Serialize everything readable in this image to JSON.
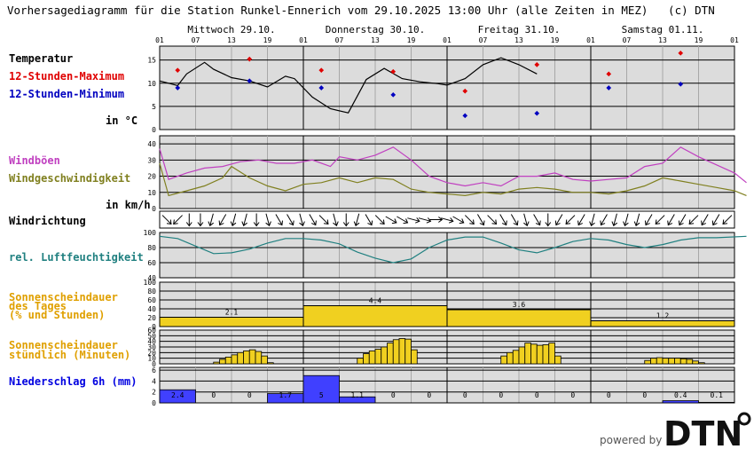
{
  "title": "Vorhersagediagramm für die Station Runkel-Ennerich vom 29.10.2025 13:00 Uhr (alle Zeiten in MEZ)   (c) DTN",
  "powered_by": "powered by",
  "logo_text": "DTN",
  "colors": {
    "temp_max": "#e00000",
    "temp_min": "#0000c0",
    "gust": "#c040c0",
    "wind": "#808020",
    "humidity": "#208080",
    "sunshine": "#f0d020",
    "sunshine_label": "#e0a000",
    "precip": "#4040ff",
    "precip_label": "#0000e0",
    "panel_bg": "#dcdcdc"
  },
  "labels": {
    "temperature": "Temperatur",
    "temp_max": "12-Stunden-Maximum",
    "temp_min": "12-Stunden-Minimum",
    "temp_unit": "in °C",
    "gusts": "Windböen",
    "wind_speed": "Windgeschwindigkeit",
    "wind_unit": "in km/h",
    "wind_direction": "Windrichtung",
    "humidity": "rel. Luftfeuchtigkeit",
    "sun_daily_1": "Sonnenscheindauer",
    "sun_daily_2": "des Tages",
    "sun_daily_3": "(% und Stunden)",
    "sun_hourly_1": "Sonnenscheindauer",
    "sun_hourly_2": "stündlich (Minuten)",
    "precip": "Niederschlag 6h (mm)"
  },
  "chart_data": {
    "type": "meteogram",
    "days": [
      "Mittwoch 29.10.",
      "Donnerstag 30.10.",
      "Freitag 31.10.",
      "Samstag 01.11."
    ],
    "hour_ticks": [
      "01",
      "07",
      "13",
      "19",
      "01",
      "07",
      "13",
      "19",
      "01",
      "07",
      "13",
      "19",
      "01",
      "07",
      "13",
      "19",
      "01"
    ],
    "temperature": {
      "yticks": [
        0,
        5,
        10,
        15
      ],
      "ylim": [
        0,
        18
      ],
      "curve": [
        [
          0,
          10.5
        ],
        [
          6,
          9.5
        ],
        [
          9,
          12
        ],
        [
          15,
          14.5
        ],
        [
          18,
          13
        ],
        [
          24,
          11.2
        ],
        [
          30,
          10.5
        ],
        [
          36,
          9.2
        ],
        [
          42,
          11.5
        ],
        [
          45,
          11
        ],
        [
          51,
          7
        ],
        [
          57,
          4.5
        ],
        [
          63,
          3.6
        ],
        [
          69,
          10.8
        ],
        [
          75,
          13.2
        ],
        [
          81,
          11
        ],
        [
          87,
          10.3
        ],
        [
          93,
          9.9
        ],
        [
          96,
          9.6
        ],
        [
          102,
          11
        ],
        [
          108,
          14
        ],
        [
          114,
          15.5
        ],
        [
          120,
          14
        ],
        [
          126,
          12
        ]
      ],
      "max_points": [
        [
          6,
          12.8
        ],
        [
          30,
          15.2
        ],
        [
          54,
          12.8
        ],
        [
          78,
          12.5
        ],
        [
          102,
          8.3
        ],
        [
          126,
          14
        ],
        [
          150,
          12
        ],
        [
          174,
          16.5
        ]
      ],
      "min_points": [
        [
          6,
          9
        ],
        [
          30,
          10.5
        ],
        [
          54,
          9
        ],
        [
          78,
          7.5
        ],
        [
          102,
          3
        ],
        [
          126,
          3.5
        ],
        [
          150,
          9
        ],
        [
          174,
          9.8
        ]
      ]
    },
    "wind": {
      "yticks": [
        0,
        10,
        20,
        30,
        40
      ],
      "ylim": [
        0,
        45
      ],
      "gusts": [
        [
          0,
          37
        ],
        [
          3,
          18
        ],
        [
          9,
          22
        ],
        [
          15,
          25
        ],
        [
          21,
          26
        ],
        [
          27,
          29
        ],
        [
          33,
          30
        ],
        [
          39,
          28
        ],
        [
          45,
          28
        ],
        [
          51,
          30
        ],
        [
          57,
          26
        ],
        [
          60,
          32
        ],
        [
          66,
          30
        ],
        [
          72,
          33
        ],
        [
          78,
          38
        ],
        [
          84,
          30
        ],
        [
          90,
          20
        ],
        [
          96,
          16
        ],
        [
          102,
          14
        ],
        [
          108,
          16
        ],
        [
          114,
          14
        ],
        [
          120,
          20
        ],
        [
          126,
          20
        ],
        [
          132,
          22
        ],
        [
          138,
          18
        ],
        [
          144,
          17
        ],
        [
          150,
          18
        ],
        [
          156,
          19
        ],
        [
          162,
          26
        ],
        [
          168,
          28
        ],
        [
          174,
          38
        ],
        [
          180,
          32
        ],
        [
          186,
          27
        ],
        [
          192,
          22
        ],
        [
          196,
          16
        ]
      ],
      "speed": [
        [
          0,
          28
        ],
        [
          3,
          8
        ],
        [
          9,
          11
        ],
        [
          15,
          14
        ],
        [
          21,
          19
        ],
        [
          24,
          26
        ],
        [
          30,
          19
        ],
        [
          36,
          14
        ],
        [
          42,
          11
        ],
        [
          48,
          15
        ],
        [
          54,
          16
        ],
        [
          60,
          19
        ],
        [
          66,
          16
        ],
        [
          72,
          19
        ],
        [
          78,
          18
        ],
        [
          84,
          12
        ],
        [
          90,
          10
        ],
        [
          96,
          9
        ],
        [
          102,
          8
        ],
        [
          108,
          10
        ],
        [
          114,
          9
        ],
        [
          120,
          12
        ],
        [
          126,
          13
        ],
        [
          132,
          12
        ],
        [
          138,
          10
        ],
        [
          144,
          10
        ],
        [
          150,
          9
        ],
        [
          156,
          11
        ],
        [
          162,
          14
        ],
        [
          168,
          19
        ],
        [
          174,
          17
        ],
        [
          180,
          15
        ],
        [
          186,
          13
        ],
        [
          192,
          11
        ],
        [
          196,
          8
        ]
      ]
    },
    "wind_direction_deg": [
      315,
      45,
      0,
      0,
      15,
      30,
      15,
      15,
      0,
      345,
      330,
      330,
      345,
      330,
      315,
      345,
      0,
      15,
      330,
      315,
      300,
      300,
      285,
      285,
      270,
      285,
      300,
      315,
      330,
      315,
      330,
      330,
      345,
      330,
      0,
      30,
      45,
      30,
      15,
      30,
      15,
      15,
      15,
      30,
      45,
      30,
      30,
      45,
      30,
      30,
      45
    ],
    "humidity": {
      "yticks": [
        40,
        60,
        80,
        100
      ],
      "ylim": [
        40,
        100
      ],
      "curve": [
        [
          0,
          95
        ],
        [
          6,
          92
        ],
        [
          12,
          82
        ],
        [
          18,
          72
        ],
        [
          24,
          73
        ],
        [
          30,
          78
        ],
        [
          36,
          86
        ],
        [
          42,
          92
        ],
        [
          48,
          92
        ],
        [
          54,
          90
        ],
        [
          60,
          85
        ],
        [
          66,
          74
        ],
        [
          72,
          66
        ],
        [
          78,
          60
        ],
        [
          84,
          65
        ],
        [
          90,
          80
        ],
        [
          96,
          90
        ],
        [
          102,
          94
        ],
        [
          108,
          94
        ],
        [
          114,
          86
        ],
        [
          120,
          77
        ],
        [
          126,
          73
        ],
        [
          132,
          80
        ],
        [
          138,
          88
        ],
        [
          144,
          92
        ],
        [
          150,
          90
        ],
        [
          156,
          84
        ],
        [
          162,
          80
        ],
        [
          168,
          84
        ],
        [
          174,
          90
        ],
        [
          180,
          93
        ],
        [
          186,
          93
        ],
        [
          196,
          95
        ]
      ]
    },
    "sunshine_daily": {
      "yticks": [
        0,
        20,
        40,
        60,
        80,
        100
      ],
      "ylim": [
        0,
        100
      ],
      "days": [
        {
          "hours": "2.1",
          "percent": 21
        },
        {
          "hours": "4.4",
          "percent": 47
        },
        {
          "hours": "3.6",
          "percent": 38
        },
        {
          "hours": "1.2",
          "percent": 13
        }
      ]
    },
    "sunshine_hourly": {
      "yticks": [
        0,
        10,
        20,
        30,
        40,
        50,
        60
      ],
      "ylim": [
        0,
        60
      ],
      "bars": [
        [
          9,
          3
        ],
        [
          10,
          8
        ],
        [
          11,
          12
        ],
        [
          12,
          16
        ],
        [
          13,
          20
        ],
        [
          14,
          23
        ],
        [
          15,
          25
        ],
        [
          16,
          22
        ],
        [
          17,
          14
        ],
        [
          18,
          2
        ],
        [
          33,
          10
        ],
        [
          34,
          18
        ],
        [
          35,
          23
        ],
        [
          36,
          26
        ],
        [
          37,
          30
        ],
        [
          38,
          37
        ],
        [
          39,
          43
        ],
        [
          40,
          45
        ],
        [
          41,
          44
        ],
        [
          42,
          25
        ],
        [
          57,
          14
        ],
        [
          58,
          20
        ],
        [
          59,
          24
        ],
        [
          60,
          30
        ],
        [
          61,
          37
        ],
        [
          62,
          35
        ],
        [
          63,
          33
        ],
        [
          64,
          34
        ],
        [
          65,
          37
        ],
        [
          66,
          14
        ],
        [
          81,
          6
        ],
        [
          82,
          10
        ],
        [
          83,
          11
        ],
        [
          84,
          10
        ],
        [
          85,
          10
        ],
        [
          86,
          10
        ],
        [
          87,
          9
        ],
        [
          88,
          8
        ],
        [
          89,
          5
        ],
        [
          90,
          2
        ]
      ]
    },
    "precip": {
      "yticks": [
        0,
        2,
        4,
        6
      ],
      "ylim": [
        0,
        6.5
      ],
      "values": [
        2.4,
        0,
        0,
        1.7,
        5,
        1.1,
        0,
        0,
        0,
        0,
        0,
        0,
        0,
        0,
        0.4,
        0.1
      ],
      "labels": [
        "2.4",
        "0",
        "0",
        "1.7",
        "5",
        "1.1",
        "0",
        "0",
        "0",
        "0",
        "0",
        "0",
        "0",
        "0",
        "0.4",
        "0.1"
      ]
    }
  }
}
